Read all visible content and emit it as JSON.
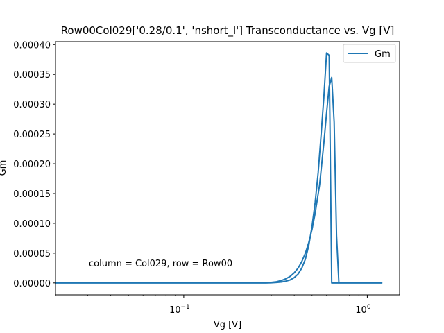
{
  "chart_data": {
    "type": "line",
    "title": "Row00Col029['0.28/0.1', 'nshort_l'] Transconductance vs. Vg [V]",
    "xlabel": "Vg [V]",
    "ylabel": "Gm",
    "x_scale": "log",
    "xlim": [
      0.02,
      1.5
    ],
    "ylim": [
      -2e-05,
      0.000405
    ],
    "x_ticks": [
      {
        "value": 0.1,
        "label": "10",
        "sup": "−1"
      },
      {
        "value": 1.0,
        "label": "10",
        "sup": "0"
      }
    ],
    "y_ticks": [
      {
        "value": 0.0,
        "label": "0.00000"
      },
      {
        "value": 5e-05,
        "label": "0.00005"
      },
      {
        "value": 0.0001,
        "label": "0.00010"
      },
      {
        "value": 0.00015,
        "label": "0.00015"
      },
      {
        "value": 0.0002,
        "label": "0.00020"
      },
      {
        "value": 0.00025,
        "label": "0.00025"
      },
      {
        "value": 0.0003,
        "label": "0.00030"
      },
      {
        "value": 0.00035,
        "label": "0.00035"
      },
      {
        "value": 0.0004,
        "label": "0.00040"
      }
    ],
    "grid": false,
    "legend": {
      "placement": "top-right",
      "entries": [
        "Gm"
      ]
    },
    "annotation": "column = Col029, row = Row00",
    "series": [
      {
        "name": "Gm",
        "color": "#1f77b4",
        "x": [
          0.02,
          0.1,
          0.2,
          0.25,
          0.28,
          0.3,
          0.32,
          0.34,
          0.36,
          0.38,
          0.4,
          0.42,
          0.44,
          0.46,
          0.48,
          0.5,
          0.52,
          0.55,
          0.58,
          0.6,
          0.62,
          0.64,
          0.66,
          0.68,
          0.7,
          0.72,
          0.74,
          0.8,
          1.0,
          1.2,
          1.0,
          0.8,
          0.7,
          0.68,
          0.66,
          0.64,
          0.62,
          0.6,
          0.58,
          0.56,
          0.54,
          0.52,
          0.5,
          0.48,
          0.46,
          0.44,
          0.42,
          0.4,
          0.38,
          0.36,
          0.34,
          0.32,
          0.3,
          0.28,
          0.25,
          0.2,
          0.1,
          0.02
        ],
        "y": [
          0.0,
          0.0,
          0.0,
          0.0,
          5e-07,
          1e-06,
          2e-06,
          4e-06,
          7e-06,
          1.1e-05,
          1.7e-05,
          2.5e-05,
          3.6e-05,
          5e-05,
          6.8e-05,
          9e-05,
          0.000117,
          0.000165,
          0.000235,
          0.000285,
          0.00033,
          0.000345,
          0.00027,
          8e-05,
          1e-06,
          0.0,
          0.0,
          0.0,
          0.0,
          0.0,
          0.0,
          0.0,
          0.0,
          0.0,
          0.0,
          0.0,
          0.000382,
          0.000386,
          0.000312,
          0.000248,
          0.000185,
          0.000135,
          9.5e-05,
          6.3e-05,
          4e-05,
          2.5e-05,
          1.5e-05,
          9e-06,
          5e-06,
          3e-06,
          1.5e-06,
          8e-07,
          3e-07,
          0.0,
          0.0,
          0.0,
          0.0,
          0.0
        ]
      }
    ]
  }
}
